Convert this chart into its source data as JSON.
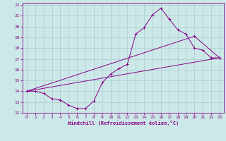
{
  "xlabel": "Windchill (Refroidissement éolien,°C)",
  "bg_color": "#cce8e8",
  "grid_color": "#aacccc",
  "line_color": "#880088",
  "axis_color": "#880088",
  "xlim": [
    -0.5,
    23.5
  ],
  "ylim": [
    12,
    22.2
  ],
  "xtick_vals": [
    0,
    1,
    2,
    3,
    4,
    5,
    6,
    7,
    8,
    9,
    10,
    11,
    12,
    13,
    14,
    15,
    16,
    17,
    18,
    19,
    20,
    21,
    22,
    23
  ],
  "ytick_vals": [
    12,
    13,
    14,
    15,
    16,
    17,
    18,
    19,
    20,
    21,
    22
  ],
  "line1_x": [
    0,
    1,
    2,
    3,
    4,
    5,
    6,
    7,
    8,
    9,
    10,
    11,
    12,
    13,
    14,
    15,
    16,
    17,
    18,
    19,
    20,
    21,
    22,
    23
  ],
  "line1_y": [
    14.0,
    14.0,
    13.8,
    13.3,
    13.2,
    12.7,
    12.4,
    12.4,
    13.1,
    14.8,
    15.6,
    16.1,
    16.5,
    19.3,
    19.9,
    21.1,
    21.7,
    20.7,
    19.7,
    19.3,
    18.0,
    17.8,
    17.1,
    17.1
  ],
  "line2_x": [
    0,
    23
  ],
  "line2_y": [
    14.0,
    17.1
  ],
  "line3_x": [
    0,
    20,
    23
  ],
  "line3_y": [
    14.0,
    19.1,
    17.1
  ]
}
